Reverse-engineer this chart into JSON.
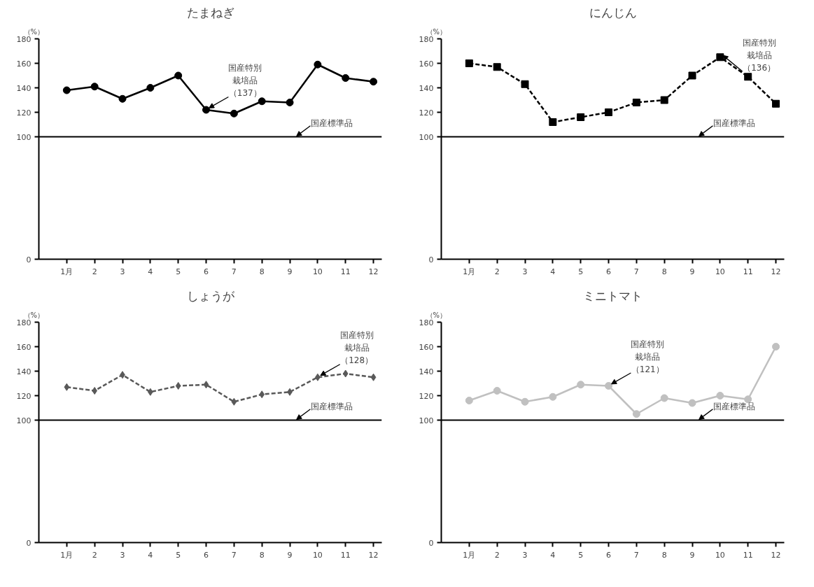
{
  "chart_data": [
    {
      "type": "line",
      "title": "たまねぎ",
      "ylabel": "（%）",
      "categories": [
        "1月",
        "2",
        "3",
        "4",
        "5",
        "6",
        "7",
        "8",
        "9",
        "10",
        "11",
        "12"
      ],
      "series": [
        {
          "color": "#000000",
          "marker": "circle",
          "line_style": "solid",
          "values": [
            138,
            141,
            131,
            140,
            150,
            122,
            119,
            129,
            128,
            159,
            148,
            145
          ]
        }
      ],
      "ylim": [
        0,
        180
      ],
      "yticks": [
        0,
        100,
        120,
        140,
        160,
        180
      ],
      "grid": false,
      "ref_lines": [
        {
          "axis": "y",
          "value": 100,
          "label": "国産標準品",
          "color": "#000000"
        }
      ],
      "annotations": [
        {
          "text": "国産特別栽培品（137）",
          "x": "6",
          "y": 122
        }
      ]
    },
    {
      "type": "line",
      "title": "にんじん",
      "ylabel": "（%）",
      "categories": [
        "1月",
        "2",
        "3",
        "4",
        "5",
        "6",
        "7",
        "8",
        "9",
        "10",
        "11",
        "12"
      ],
      "series": [
        {
          "color": "#000000",
          "marker": "square",
          "line_style": "dashed",
          "values": [
            160,
            157,
            143,
            112,
            116,
            120,
            128,
            130,
            150,
            165,
            149,
            127
          ]
        }
      ],
      "ylim": [
        0,
        180
      ],
      "yticks": [
        0,
        100,
        120,
        140,
        160,
        180
      ],
      "grid": false,
      "ref_lines": [
        {
          "axis": "y",
          "value": 100,
          "label": "国産標準品",
          "color": "#000000"
        }
      ],
      "annotations": [
        {
          "text": "国産特別栽培品（136）",
          "x": "10",
          "y": 165
        }
      ]
    },
    {
      "type": "line",
      "title": "しょうが",
      "ylabel": "（%）",
      "categories": [
        "1月",
        "2",
        "3",
        "4",
        "5",
        "6",
        "7",
        "8",
        "9",
        "10",
        "11",
        "12"
      ],
      "series": [
        {
          "color": "#595959",
          "marker": "diamond",
          "line_style": "dashed",
          "values": [
            127,
            124,
            137,
            123,
            128,
            129,
            115,
            121,
            123,
            135,
            138,
            135
          ]
        }
      ],
      "ylim": [
        0,
        180
      ],
      "yticks": [
        0,
        100,
        120,
        140,
        160,
        180
      ],
      "grid": false,
      "ref_lines": [
        {
          "axis": "y",
          "value": 100,
          "label": "国産標準品",
          "color": "#000000"
        }
      ],
      "annotations": [
        {
          "text": "国産特別栽培品（128）",
          "x": "10",
          "y": 135
        }
      ]
    },
    {
      "type": "line",
      "title": "ミニトマト",
      "ylabel": "（%）",
      "categories": [
        "1月",
        "2",
        "3",
        "4",
        "5",
        "6",
        "7",
        "8",
        "9",
        "10",
        "11",
        "12"
      ],
      "series": [
        {
          "color": "#c0c0c0",
          "marker": "circle",
          "line_style": "solid",
          "values": [
            116,
            124,
            115,
            119,
            129,
            128,
            105,
            118,
            114,
            120,
            117,
            160
          ]
        }
      ],
      "ylim": [
        0,
        180
      ],
      "yticks": [
        0,
        100,
        120,
        140,
        160,
        180
      ],
      "grid": false,
      "ref_lines": [
        {
          "axis": "y",
          "value": 100,
          "label": "国産標準品",
          "color": "#000000"
        }
      ],
      "annotations": [
        {
          "text": "国産特別栽培品（121）",
          "x": "6",
          "y": 128
        }
      ]
    }
  ]
}
